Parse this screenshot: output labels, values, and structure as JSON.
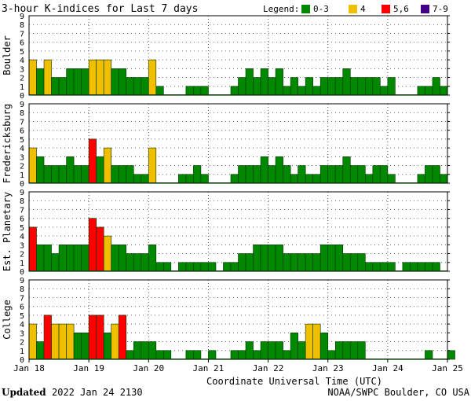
{
  "chart_data": {
    "type": "bar",
    "title": "3-hour K-indices for Last 7 days",
    "xlabel": "Coordinate Universal Time (UTC)",
    "ylim": [
      0,
      9
    ],
    "grid": true,
    "bins_per_day": 8,
    "x_ticks": [
      "Jan 18",
      "Jan 19",
      "Jan 20",
      "Jan 21",
      "Jan 22",
      "Jan 23",
      "Jan 24",
      "Jan 25"
    ],
    "y_ticks": [
      "0",
      "1",
      "2",
      "3",
      "4",
      "5",
      "6",
      "7",
      "8",
      "9"
    ],
    "legend": {
      "label": "Legend:",
      "placement": "top-right",
      "entries": [
        {
          "label": "0-3",
          "color": "#008800"
        },
        {
          "label": "4",
          "color": "#f0c000"
        },
        {
          "label": "5,6",
          "color": "#ff0000"
        },
        {
          "label": "7-9",
          "color": "#440088"
        }
      ]
    },
    "panels": [
      {
        "name": "Boulder",
        "values": [
          4,
          3,
          4,
          2,
          2,
          3,
          3,
          3,
          4,
          4,
          4,
          3,
          3,
          2,
          2,
          2,
          4,
          1,
          0,
          0,
          0,
          1,
          1,
          1,
          0,
          0,
          0,
          1,
          2,
          3,
          2,
          3,
          2,
          3,
          1,
          2,
          1,
          2,
          1,
          2,
          2,
          2,
          3,
          2,
          2,
          2,
          2,
          1,
          2,
          0,
          0,
          0,
          1,
          1,
          2,
          1,
          0
        ]
      },
      {
        "name": "Fredericksburg",
        "values": [
          4,
          3,
          2,
          2,
          2,
          3,
          2,
          2,
          5,
          3,
          4,
          2,
          2,
          2,
          1,
          1,
          4,
          0,
          0,
          0,
          1,
          1,
          2,
          1,
          0,
          0,
          0,
          1,
          2,
          2,
          2,
          3,
          2,
          3,
          2,
          1,
          2,
          1,
          1,
          2,
          2,
          2,
          3,
          2,
          2,
          1,
          2,
          2,
          1,
          0,
          0,
          0,
          1,
          2,
          2,
          1,
          0
        ]
      },
      {
        "name": "Est. Planetary",
        "values": [
          5,
          3,
          3,
          2,
          3,
          3,
          3,
          3,
          6,
          5,
          4,
          3,
          3,
          2,
          2,
          2,
          3,
          1,
          1,
          0,
          1,
          1,
          1,
          1,
          1,
          0,
          1,
          1,
          2,
          2,
          3,
          3,
          3,
          3,
          2,
          2,
          2,
          2,
          2,
          3,
          3,
          3,
          2,
          2,
          2,
          1,
          1,
          1,
          1,
          0,
          1,
          1,
          1,
          1,
          1,
          0,
          0
        ]
      },
      {
        "name": "College",
        "values": [
          4,
          2,
          5,
          4,
          4,
          4,
          3,
          3,
          5,
          5,
          3,
          4,
          5,
          1,
          2,
          2,
          2,
          1,
          1,
          0,
          0,
          1,
          1,
          0,
          1,
          0,
          0,
          1,
          1,
          2,
          1,
          2,
          2,
          2,
          1,
          3,
          2,
          4,
          4,
          3,
          1,
          2,
          2,
          2,
          2,
          0,
          0,
          0,
          0,
          0,
          0,
          0,
          0,
          1,
          0,
          0,
          1
        ]
      }
    ]
  },
  "footer": {
    "updated_label": "Updated",
    "updated_value": "2022 Jan 24 2130",
    "source": "NOAA/SWPC Boulder, CO USA"
  }
}
